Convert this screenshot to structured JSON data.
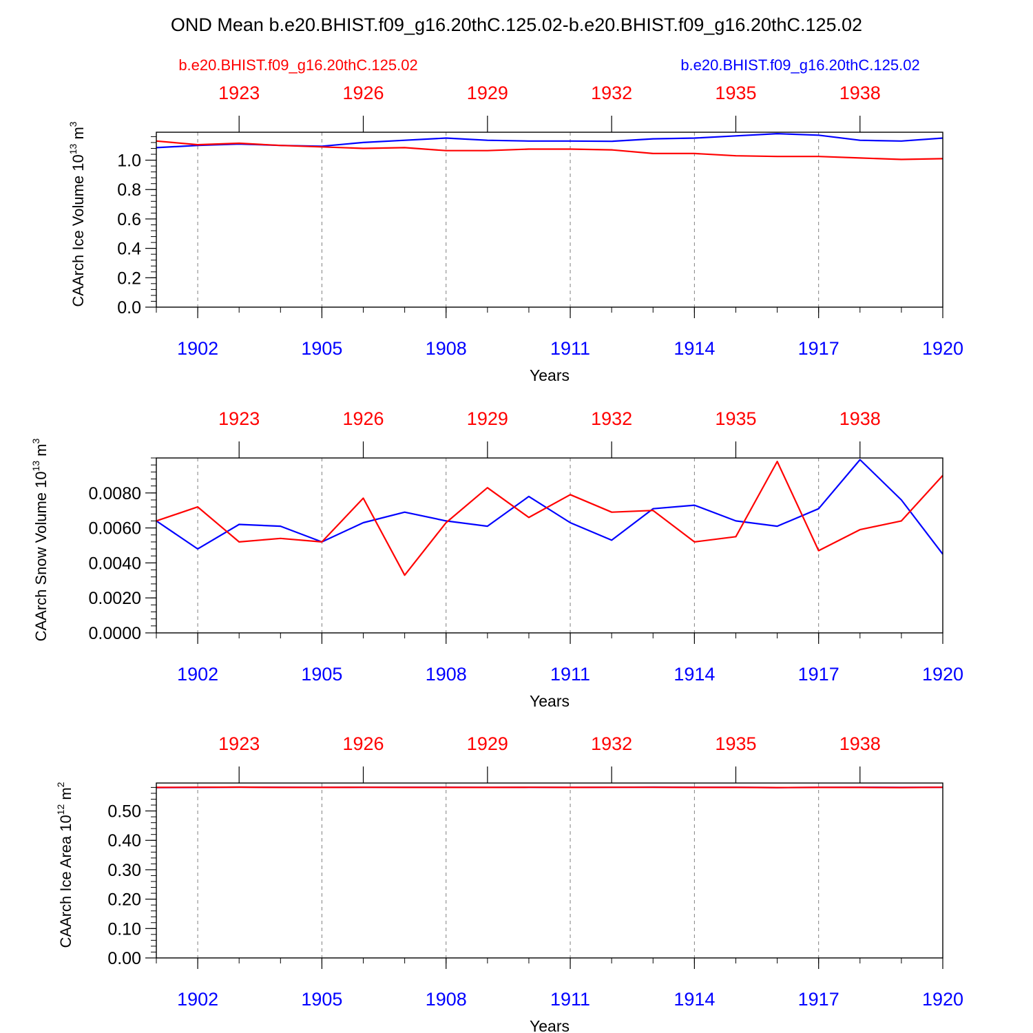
{
  "title": "OND Mean b.e20.BHIST.f09_g16.20thC.125.02-b.e20.BHIST.f09_g16.20thC.125.02",
  "legend": {
    "left": "b.e20.BHIST.f09_g16.20thC.125.02",
    "right": "b.e20.BHIST.f09_g16.20thC.125.02"
  },
  "colors": {
    "series_red": "#ff0000",
    "series_blue": "#0000ff",
    "grid": "#7f7f7f"
  },
  "chart_data": [
    {
      "type": "line",
      "ylabel": {
        "main": "CAArch Ice Volume 10",
        "exp": "13",
        "unit": " m",
        "unit_exp": "3"
      },
      "xlabel": "Years",
      "ylim": [
        0,
        1.19
      ],
      "yticks": [
        0.0,
        0.2,
        0.4,
        0.6,
        0.8,
        1.0
      ],
      "ytick_labels": [
        "0.0",
        "0.2",
        "0.4",
        "0.6",
        "0.8",
        "1.0"
      ],
      "yminor_step": 0.04,
      "xlim": [
        1901,
        1920
      ],
      "bottom_ticks": [
        1902,
        1905,
        1908,
        1911,
        1914,
        1917,
        1920
      ],
      "bottom_tick_labels": [
        "1902",
        "1905",
        "1908",
        "1911",
        "1914",
        "1917",
        "1920"
      ],
      "top_ticks": [
        1903,
        1906,
        1909,
        1912,
        1915,
        1918
      ],
      "top_tick_labels": [
        "1923",
        "1926",
        "1929",
        "1932",
        "1935",
        "1938"
      ],
      "series": [
        {
          "name": "b.e20.BHIST.f09_g16.20thC.125.02 (1901-1920)",
          "color": "#0000ff",
          "x": [
            1901,
            1902,
            1903,
            1904,
            1905,
            1906,
            1907,
            1908,
            1909,
            1910,
            1911,
            1912,
            1913,
            1914,
            1915,
            1916,
            1917,
            1918,
            1919,
            1920
          ],
          "values": [
            1.085,
            1.1,
            1.11,
            1.1,
            1.095,
            1.12,
            1.135,
            1.15,
            1.135,
            1.13,
            1.13,
            1.128,
            1.145,
            1.15,
            1.165,
            1.18,
            1.17,
            1.135,
            1.13,
            1.15
          ]
        },
        {
          "name": "b.e20.BHIST.f09_g16.20thC.125.02 (1921-1940)",
          "color": "#ff0000",
          "x": [
            1901,
            1902,
            1903,
            1904,
            1905,
            1906,
            1907,
            1908,
            1909,
            1910,
            1911,
            1912,
            1913,
            1914,
            1915,
            1916,
            1917,
            1918,
            1919,
            1920
          ],
          "values": [
            1.13,
            1.105,
            1.115,
            1.1,
            1.09,
            1.08,
            1.085,
            1.065,
            1.065,
            1.075,
            1.075,
            1.07,
            1.045,
            1.045,
            1.03,
            1.025,
            1.025,
            1.015,
            1.005,
            1.01
          ]
        }
      ]
    },
    {
      "type": "line",
      "ylabel": {
        "main": "CAArch Snow Volume 10",
        "exp": "13",
        "unit": " m",
        "unit_exp": "3"
      },
      "xlabel": "Years",
      "ylim": [
        0,
        0.01
      ],
      "yticks": [
        0.0,
        0.002,
        0.004,
        0.006,
        0.008
      ],
      "ytick_labels": [
        "0.0000",
        "0.0020",
        "0.0040",
        "0.0060",
        "0.0080"
      ],
      "yminor_step": 0.0004,
      "xlim": [
        1901,
        1920
      ],
      "bottom_ticks": [
        1902,
        1905,
        1908,
        1911,
        1914,
        1917,
        1920
      ],
      "bottom_tick_labels": [
        "1902",
        "1905",
        "1908",
        "1911",
        "1914",
        "1917",
        "1920"
      ],
      "top_ticks": [
        1903,
        1906,
        1909,
        1912,
        1915,
        1918
      ],
      "top_tick_labels": [
        "1923",
        "1926",
        "1929",
        "1932",
        "1935",
        "1938"
      ],
      "series": [
        {
          "name": "b.e20.BHIST.f09_g16.20thC.125.02 (1901-1920)",
          "color": "#0000ff",
          "x": [
            1901,
            1902,
            1903,
            1904,
            1905,
            1906,
            1907,
            1908,
            1909,
            1910,
            1911,
            1912,
            1913,
            1914,
            1915,
            1916,
            1917,
            1918,
            1919,
            1920
          ],
          "values": [
            0.0064,
            0.0048,
            0.0062,
            0.0061,
            0.0052,
            0.0063,
            0.0069,
            0.0064,
            0.0061,
            0.0078,
            0.0063,
            0.0053,
            0.0071,
            0.0073,
            0.0064,
            0.0061,
            0.0071,
            0.0099,
            0.0076,
            0.0045
          ]
        },
        {
          "name": "b.e20.BHIST.f09_g16.20thC.125.02 (1921-1940)",
          "color": "#ff0000",
          "x": [
            1901,
            1902,
            1903,
            1904,
            1905,
            1906,
            1907,
            1908,
            1909,
            1910,
            1911,
            1912,
            1913,
            1914,
            1915,
            1916,
            1917,
            1918,
            1919,
            1920
          ],
          "values": [
            0.0064,
            0.0072,
            0.0052,
            0.0054,
            0.0052,
            0.0077,
            0.0033,
            0.0063,
            0.0083,
            0.0066,
            0.0079,
            0.0069,
            0.007,
            0.0052,
            0.0055,
            0.0098,
            0.0047,
            0.0059,
            0.0064,
            0.009
          ]
        }
      ]
    },
    {
      "type": "line",
      "ylabel": {
        "main": "CAArch Ice Area 10",
        "exp": "12",
        "unit": " m",
        "unit_exp": "2"
      },
      "xlabel": "Years",
      "ylim": [
        0,
        0.595
      ],
      "yticks": [
        0.0,
        0.1,
        0.2,
        0.3,
        0.4,
        0.5
      ],
      "ytick_labels": [
        "0.00",
        "0.10",
        "0.20",
        "0.30",
        "0.40",
        "0.50"
      ],
      "yminor_step": 0.02,
      "xlim": [
        1901,
        1920
      ],
      "bottom_ticks": [
        1902,
        1905,
        1908,
        1911,
        1914,
        1917,
        1920
      ],
      "bottom_tick_labels": [
        "1902",
        "1905",
        "1908",
        "1911",
        "1914",
        "1917",
        "1920"
      ],
      "top_ticks": [
        1903,
        1906,
        1909,
        1912,
        1915,
        1918
      ],
      "top_tick_labels": [
        "1923",
        "1926",
        "1929",
        "1932",
        "1935",
        "1938"
      ],
      "series": [
        {
          "name": "b.e20.BHIST.f09_g16.20thC.125.02 (1901-1920)",
          "color": "#0000ff",
          "x": [
            1901,
            1902,
            1903,
            1904,
            1905,
            1906,
            1907,
            1908,
            1909,
            1910,
            1911,
            1912,
            1913,
            1914,
            1915,
            1916,
            1917,
            1918,
            1919,
            1920
          ],
          "values": [
            0.5795,
            0.58,
            0.581,
            0.5805,
            0.58,
            0.5805,
            0.5805,
            0.5805,
            0.58,
            0.5805,
            0.58,
            0.5805,
            0.581,
            0.5805,
            0.5805,
            0.5795,
            0.58,
            0.5805,
            0.58,
            0.5805
          ]
        },
        {
          "name": "b.e20.BHIST.f09_g16.20thC.125.02 (1921-1940)",
          "color": "#ff0000",
          "x": [
            1901,
            1902,
            1903,
            1904,
            1905,
            1906,
            1907,
            1908,
            1909,
            1910,
            1911,
            1912,
            1913,
            1914,
            1915,
            1916,
            1917,
            1918,
            1919,
            1920
          ],
          "values": [
            0.58,
            0.5805,
            0.581,
            0.58,
            0.58,
            0.5805,
            0.58,
            0.58,
            0.58,
            0.5805,
            0.58,
            0.5805,
            0.5805,
            0.58,
            0.58,
            0.5795,
            0.58,
            0.58,
            0.5795,
            0.5805
          ]
        }
      ]
    }
  ]
}
